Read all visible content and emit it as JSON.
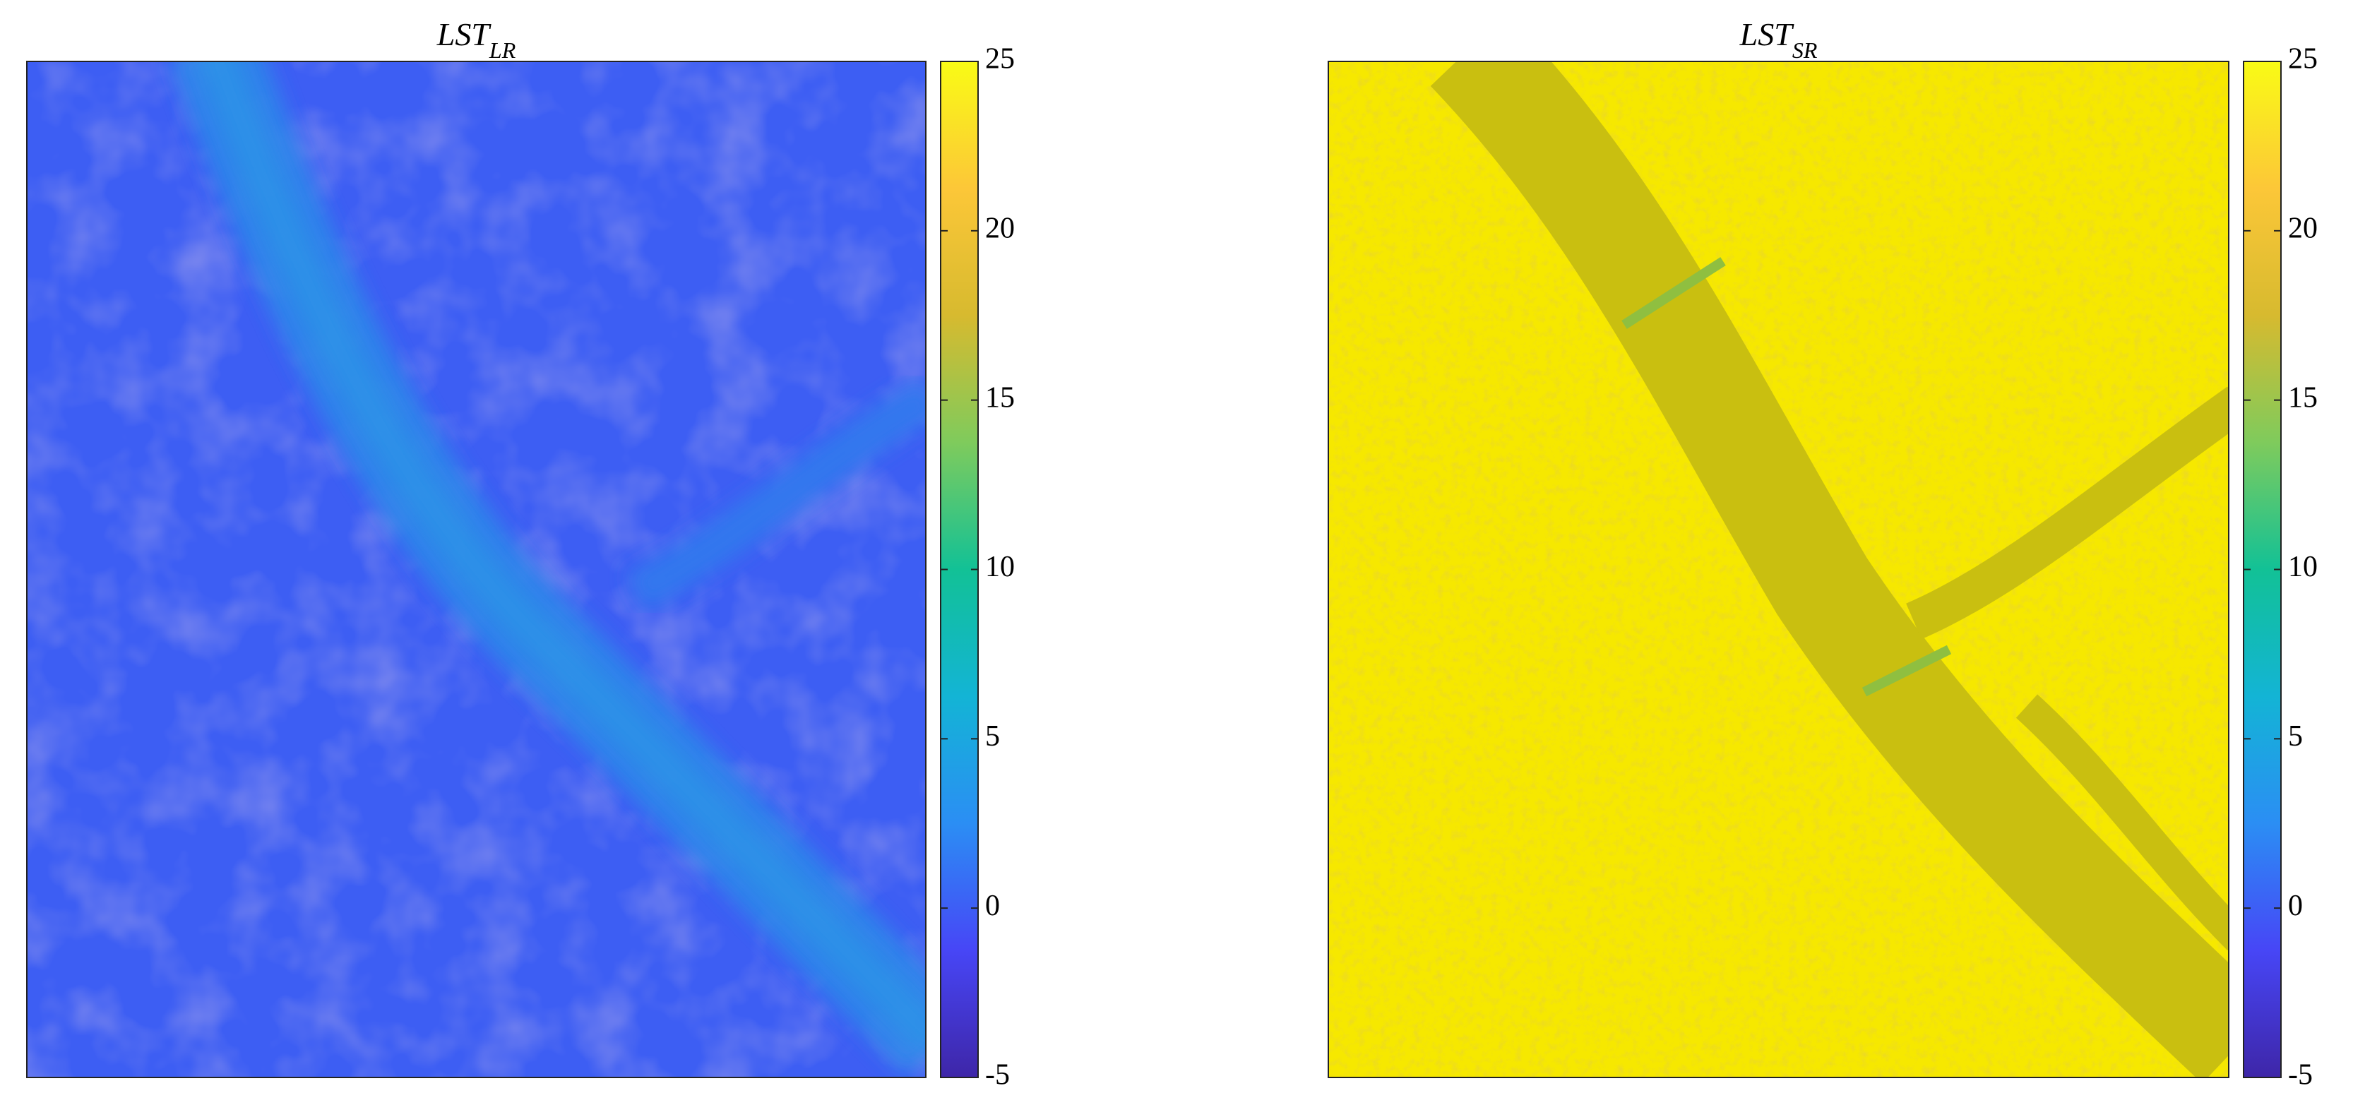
{
  "chart_data": [
    {
      "type": "heatmap",
      "title": "LST",
      "title_subscript": "LR",
      "clim": [
        -5,
        25
      ],
      "colorbar_ticks": [
        -5,
        0,
        5,
        10,
        15,
        20,
        25
      ],
      "colormap": [
        "#3e26a8",
        "#4746f6",
        "#2b8ef4",
        "#13b4d5",
        "#12c196",
        "#7fcb5c",
        "#d7ba2f",
        "#fcc738",
        "#f9fb15"
      ]
    },
    {
      "type": "heatmap",
      "title": "LST",
      "title_subscript": "SR",
      "clim": [
        -5,
        25
      ],
      "colorbar_ticks": [
        -5,
        0,
        5,
        10,
        15,
        20,
        25
      ],
      "colormap": [
        "#3e26a8",
        "#4746f6",
        "#2b8ef4",
        "#13b4d5",
        "#12c196",
        "#7fcb5c",
        "#d7ba2f",
        "#fcc738",
        "#f9fb15"
      ]
    }
  ]
}
